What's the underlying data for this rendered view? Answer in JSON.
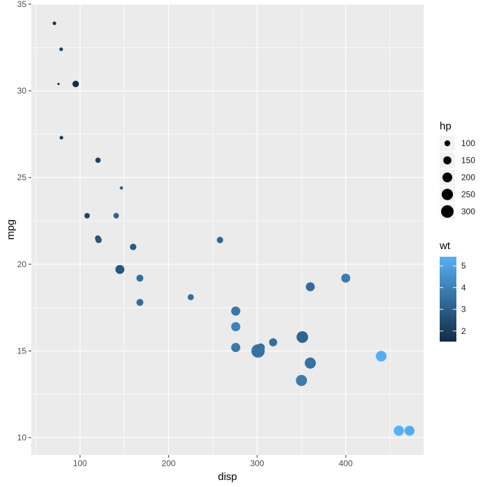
{
  "chart_data": {
    "type": "scatter",
    "xlabel": "disp",
    "ylabel": "mpg",
    "xlim": [
      45,
      488
    ],
    "ylim": [
      9.0,
      35.0
    ],
    "x_ticks": [
      100,
      200,
      300,
      400
    ],
    "y_ticks": [
      10,
      15,
      20,
      25,
      30,
      35
    ],
    "grid": true,
    "size_legend": {
      "title": "hp",
      "values": [
        100,
        150,
        200,
        250,
        300
      ]
    },
    "color_legend": {
      "title": "wt",
      "ticks": [
        2,
        3,
        4,
        5
      ],
      "range": [
        1.513,
        5.424
      ],
      "low_color": "#132b43",
      "high_color": "#56b1f7"
    },
    "colors": {
      "panel": "#ebebeb",
      "gridline": "#ffffff"
    },
    "points": [
      {
        "x": 160.0,
        "y": 21.0,
        "hp": 110,
        "wt": 2.62
      },
      {
        "x": 160.0,
        "y": 21.0,
        "hp": 110,
        "wt": 2.875
      },
      {
        "x": 108.0,
        "y": 22.8,
        "hp": 93,
        "wt": 2.32
      },
      {
        "x": 258.0,
        "y": 21.4,
        "hp": 110,
        "wt": 3.215
      },
      {
        "x": 360.0,
        "y": 18.7,
        "hp": 175,
        "wt": 3.44
      },
      {
        "x": 225.0,
        "y": 18.1,
        "hp": 105,
        "wt": 3.46
      },
      {
        "x": 360.0,
        "y": 14.3,
        "hp": 245,
        "wt": 3.57
      },
      {
        "x": 146.7,
        "y": 24.4,
        "hp": 62,
        "wt": 3.19
      },
      {
        "x": 140.8,
        "y": 22.8,
        "hp": 95,
        "wt": 3.15
      },
      {
        "x": 167.6,
        "y": 19.2,
        "hp": 123,
        "wt": 3.44
      },
      {
        "x": 167.6,
        "y": 17.8,
        "hp": 123,
        "wt": 3.44
      },
      {
        "x": 275.8,
        "y": 16.4,
        "hp": 180,
        "wt": 4.07
      },
      {
        "x": 275.8,
        "y": 17.3,
        "hp": 180,
        "wt": 3.73
      },
      {
        "x": 275.8,
        "y": 15.2,
        "hp": 180,
        "wt": 3.78
      },
      {
        "x": 472.0,
        "y": 10.4,
        "hp": 205,
        "wt": 5.25
      },
      {
        "x": 460.0,
        "y": 10.4,
        "hp": 215,
        "wt": 5.424
      },
      {
        "x": 440.0,
        "y": 14.7,
        "hp": 230,
        "wt": 5.345
      },
      {
        "x": 78.7,
        "y": 32.4,
        "hp": 66,
        "wt": 2.2
      },
      {
        "x": 75.7,
        "y": 30.4,
        "hp": 52,
        "wt": 1.615
      },
      {
        "x": 71.1,
        "y": 33.9,
        "hp": 65,
        "wt": 1.835
      },
      {
        "x": 120.1,
        "y": 21.5,
        "hp": 97,
        "wt": 2.465
      },
      {
        "x": 318.0,
        "y": 15.5,
        "hp": 150,
        "wt": 3.52
      },
      {
        "x": 304.0,
        "y": 15.2,
        "hp": 150,
        "wt": 3.435
      },
      {
        "x": 350.0,
        "y": 13.3,
        "hp": 245,
        "wt": 3.84
      },
      {
        "x": 400.0,
        "y": 19.2,
        "hp": 175,
        "wt": 3.845
      },
      {
        "x": 79.0,
        "y": 27.3,
        "hp": 66,
        "wt": 1.935
      },
      {
        "x": 120.3,
        "y": 26.0,
        "hp": 91,
        "wt": 2.14
      },
      {
        "x": 95.1,
        "y": 30.4,
        "hp": 113,
        "wt": 1.513
      },
      {
        "x": 351.0,
        "y": 15.8,
        "hp": 264,
        "wt": 3.17
      },
      {
        "x": 145.0,
        "y": 19.7,
        "hp": 175,
        "wt": 2.77
      },
      {
        "x": 301.0,
        "y": 15.0,
        "hp": 335,
        "wt": 3.57
      },
      {
        "x": 121.0,
        "y": 21.4,
        "hp": 109,
        "wt": 2.78
      }
    ]
  }
}
